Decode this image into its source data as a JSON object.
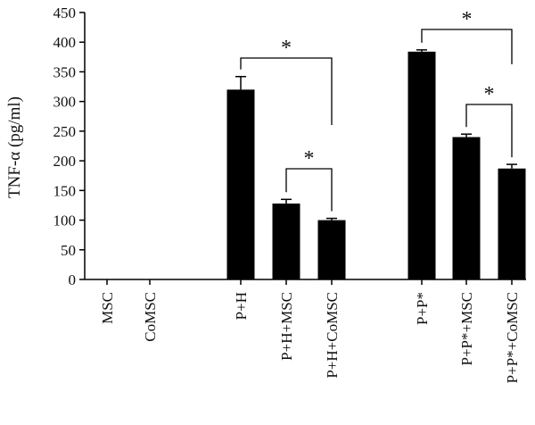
{
  "chart_data": {
    "type": "bar",
    "title": "",
    "xlabel": "",
    "ylabel": "TNF-α (pg/ml)",
    "ylim": [
      0,
      450
    ],
    "yticks": [
      0,
      50,
      100,
      150,
      200,
      250,
      300,
      350,
      400,
      450
    ],
    "grid": false,
    "legend": "none",
    "bar_color": "#000000",
    "categories": [
      "MSC",
      "CoMSC",
      "P+H",
      "P+H+MSC",
      "P+H+CoMSC",
      "P+P*",
      "P+P*+MSC",
      "P+P*+CoMSC"
    ],
    "group_sizes": [
      2,
      3,
      3
    ],
    "values": [
      0,
      0,
      320,
      128,
      100,
      384,
      240,
      187
    ],
    "errors": [
      0,
      0,
      22,
      7,
      3,
      3,
      5,
      7
    ],
    "significance": [
      {
        "from": "P+H",
        "to": "P+H+CoMSC",
        "label": "*"
      },
      {
        "from": "P+H+MSC",
        "to": "P+H+CoMSC",
        "label": "*"
      },
      {
        "from": "P+P*",
        "to": "P+P*+CoMSC",
        "label": "*"
      },
      {
        "from": "P+P*+MSC",
        "to": "P+P*+CoMSC",
        "label": "*"
      }
    ]
  }
}
